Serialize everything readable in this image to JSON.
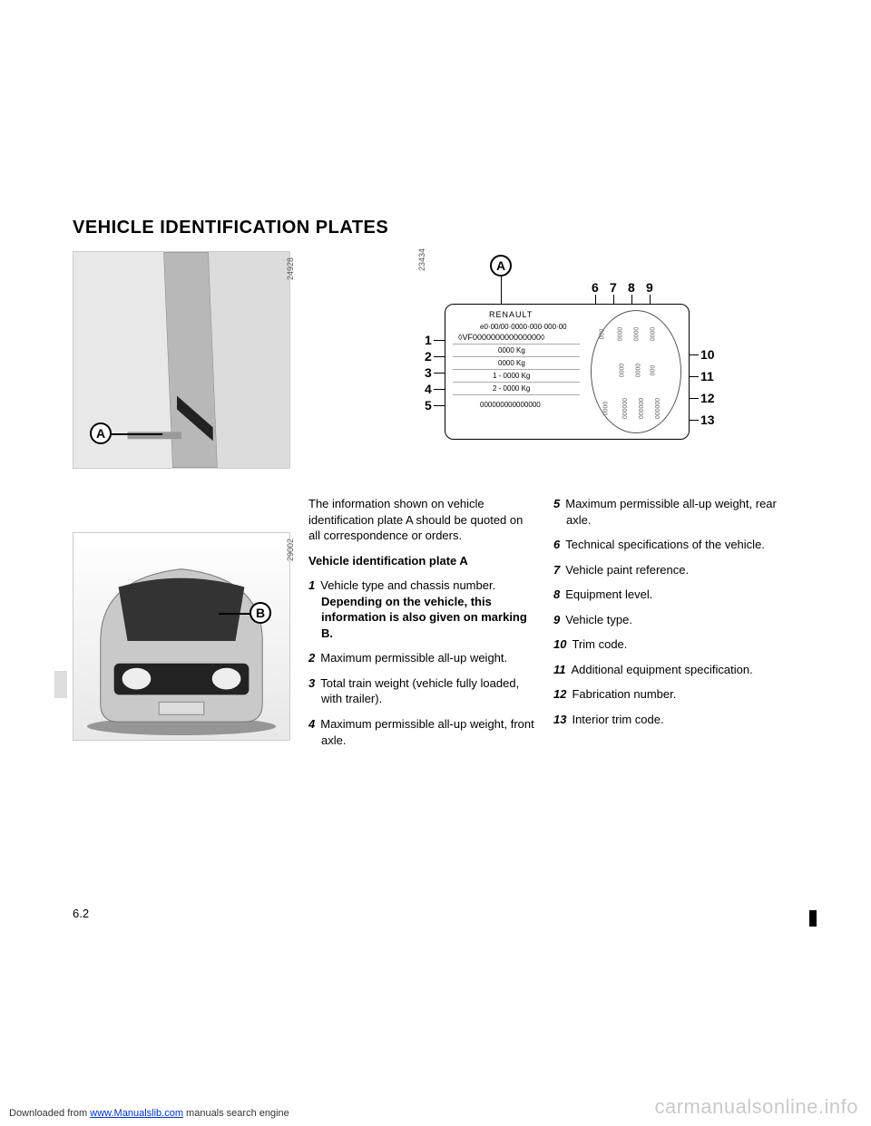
{
  "title": "VEHICLE IDENTIFICATION PLATES",
  "img_codes": {
    "door": "24928",
    "plate": "23434",
    "car": "29002"
  },
  "markers": {
    "A": "A",
    "B": "B"
  },
  "plate": {
    "brand": "RENAULT",
    "line_e": "e0·00/00·0000·000·000·00",
    "vin": "◊VF000000000000000◊",
    "w1": "0000 Kg",
    "w2": "0000 Kg",
    "w3": "1 - 0000 Kg",
    "w4": "2 - 0000 Kg",
    "serial": "000000000000000",
    "ov_top": [
      "000",
      "0000",
      "0000",
      "0000"
    ],
    "ov_mid": [
      "0000",
      "0000",
      "000"
    ],
    "ov_bot": [
      "0000",
      "000000",
      "000000",
      "000000"
    ]
  },
  "callouts_left": [
    "1",
    "2",
    "3",
    "4",
    "5"
  ],
  "callouts_top": [
    "6",
    "7",
    "8",
    "9"
  ],
  "callouts_right": [
    "10",
    "11",
    "12",
    "13"
  ],
  "intro": "The information shown on vehicle identification plate A should be quoted on all correspondence or orders.",
  "plate_heading": "Vehicle identification plate A",
  "defs_left": [
    {
      "n": "1",
      "t": "Vehicle type and chassis number. ",
      "bold": "Depending on the vehicle, this information is also given on marking B."
    },
    {
      "n": "2",
      "t": "Maximum permissible all-up weight."
    },
    {
      "n": "3",
      "t": "Total train weight (vehicle fully loaded, with trailer)."
    },
    {
      "n": "4",
      "t": "Maximum permissible all-up weight, front axle."
    }
  ],
  "defs_right": [
    {
      "n": "5",
      "t": "Maximum permissible all-up weight, rear axle."
    },
    {
      "n": "6",
      "t": "Technical specifications of the vehicle."
    },
    {
      "n": "7",
      "t": "Vehicle paint reference."
    },
    {
      "n": "8",
      "t": "Equipment level."
    },
    {
      "n": "9",
      "t": "Vehicle type."
    },
    {
      "n": "10",
      "t": "Trim code."
    },
    {
      "n": "11",
      "t": "Additional equipment specification."
    },
    {
      "n": "12",
      "t": "Fabrication number."
    },
    {
      "n": "13",
      "t": "Interior trim code."
    }
  ],
  "page_num": "6.2",
  "footer_pre": "Downloaded from ",
  "footer_link": "www.Manualslib.com",
  "footer_post": " manuals search engine",
  "watermark": "carmanualsonline.info"
}
